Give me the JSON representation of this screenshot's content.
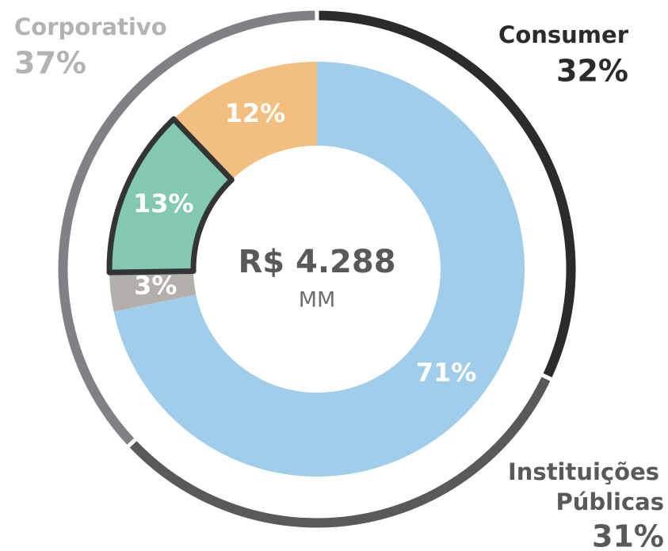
{
  "chart_data": {
    "type": "donut",
    "center_label": "R$ 4.288",
    "center_unit": "MM",
    "inner": {
      "values": [
        71,
        3,
        13,
        12
      ],
      "value_labels": [
        "71%",
        "3%",
        "13%",
        "12%"
      ],
      "colors": [
        "#9fcdea",
        "#b3afab",
        "#83c9b1",
        "#f3bf80"
      ],
      "highlight": 2
    },
    "outer": {
      "categories": [
        "Consumer",
        "Instituições Públicas",
        "Corporativo"
      ],
      "values": [
        32,
        31,
        37
      ],
      "value_labels": [
        "32%",
        "31%",
        "37%"
      ],
      "colors": [
        "#2b2b2d",
        "#58595b",
        "#808184"
      ],
      "label_colors": [
        "#2b2b2d",
        "#58595b",
        "#b3b3b5"
      ]
    }
  }
}
